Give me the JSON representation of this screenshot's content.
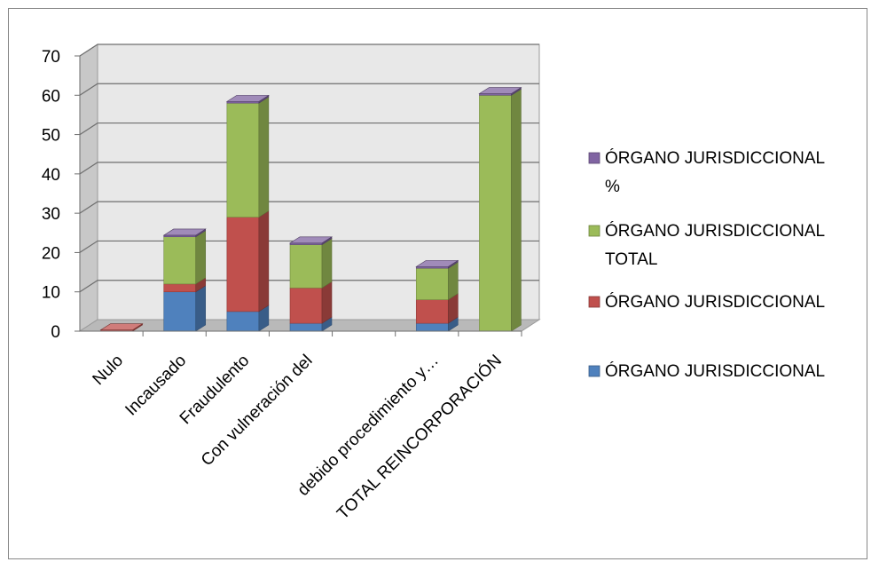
{
  "chart_data": {
    "type": "bar",
    "stacked": true,
    "three_d": true,
    "categories": [
      "Nulo",
      "Incausado",
      "Fraudulento",
      "Con vulneración del",
      "",
      "debido procedimiento y…",
      "TOTAL REINCORPORACIÓN"
    ],
    "series": [
      {
        "name": "ÓRGANO JURISDICCIONAL",
        "color": "#4F81BD",
        "values": [
          0,
          10,
          5,
          2,
          0,
          2,
          0
        ]
      },
      {
        "name": "ÓRGANO JURISDICCIONAL",
        "color": "#C0504D",
        "values": [
          0.3,
          2,
          24,
          9,
          0,
          6,
          0
        ]
      },
      {
        "name": "ÓRGANO JURISDICCIONAL TOTAL",
        "legend_lines": [
          "ÓRGANO JURISDICCIONAL",
          "TOTAL"
        ],
        "color": "#9BBB59",
        "values": [
          0,
          12,
          29,
          11,
          0,
          8,
          60
        ]
      },
      {
        "name": "ÓRGANO JURISDICCIONAL %",
        "legend_lines": [
          "ÓRGANO JURISDICCIONAL",
          "%"
        ],
        "color": "#8064A2",
        "values": [
          0,
          0.4,
          0.4,
          0.4,
          0,
          0.4,
          0.4
        ]
      }
    ],
    "ylim": [
      0,
      70
    ],
    "yticks": [
      "0",
      "10",
      "20",
      "30",
      "40",
      "50",
      "60",
      "70"
    ],
    "grid": true,
    "legend_position": "right"
  }
}
